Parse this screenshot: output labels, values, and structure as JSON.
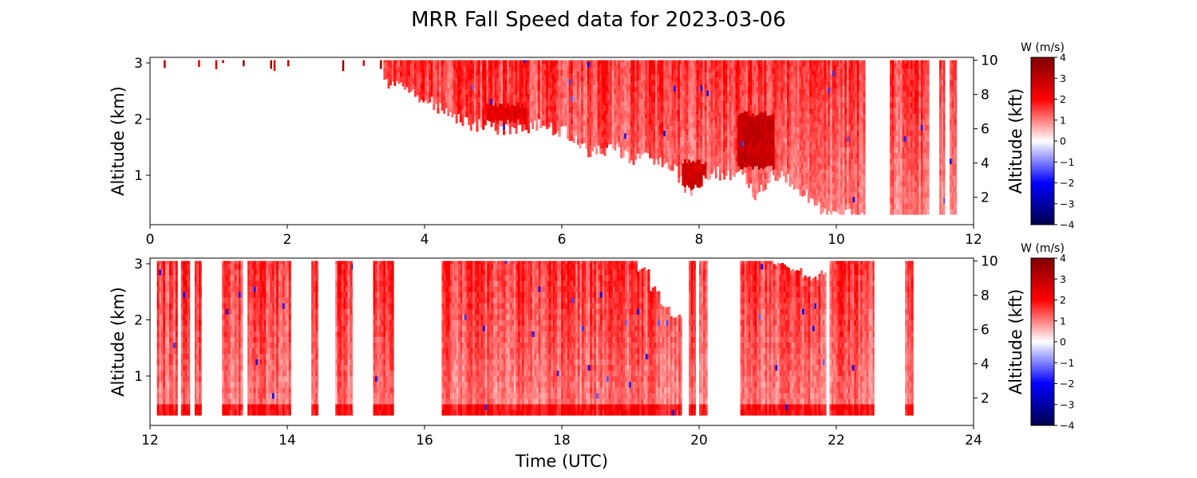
{
  "title": "MRR Fall Speed data for 2023-03-06",
  "chart_data": [
    {
      "type": "heatmap",
      "panel": "top",
      "xlabel": "",
      "ylabel": "Altitude (km)",
      "y2label": "Altitude (kft)",
      "xlim": [
        0,
        12
      ],
      "ylim": [
        0.12,
        3.1
      ],
      "y2lim": [
        0.4,
        10.17
      ],
      "xticks": [
        0,
        2,
        4,
        6,
        8,
        10,
        12
      ],
      "yticks": [
        1,
        2,
        3
      ],
      "y2ticks": [
        2,
        4,
        6,
        8,
        10
      ],
      "colorbar": {
        "label": "W (m/s)",
        "range": [
          -4,
          4
        ],
        "ticks": [
          -4,
          -3,
          -2,
          -1,
          0,
          1,
          2,
          3,
          4
        ],
        "colormap": "seismic"
      },
      "echo_top_km": 3.05,
      "echo_base_km": [
        [
          3.3,
          2.7
        ],
        [
          3.6,
          2.6
        ],
        [
          3.8,
          2.5
        ],
        [
          4.0,
          2.35
        ],
        [
          4.2,
          2.2
        ],
        [
          4.4,
          2.0
        ],
        [
          4.7,
          1.9
        ],
        [
          5.0,
          1.85
        ],
        [
          5.3,
          1.8
        ],
        [
          5.6,
          1.9
        ],
        [
          6.0,
          1.8
        ],
        [
          6.2,
          1.6
        ],
        [
          6.4,
          1.4
        ],
        [
          6.8,
          1.45
        ],
        [
          7.0,
          1.3
        ],
        [
          7.3,
          1.3
        ],
        [
          7.6,
          1.2
        ],
        [
          7.8,
          0.7
        ],
        [
          8.0,
          0.85
        ],
        [
          8.2,
          1.05
        ],
        [
          8.4,
          1.0
        ],
        [
          8.6,
          1.1
        ],
        [
          8.8,
          0.6
        ],
        [
          9.0,
          0.95
        ],
        [
          9.2,
          1.05
        ],
        [
          9.4,
          0.8
        ],
        [
          9.6,
          0.6
        ],
        [
          9.8,
          0.3
        ],
        [
          10.4,
          0.3
        ]
      ],
      "echo_segments_h": [
        [
          3.4,
          10.42
        ],
        [
          10.78,
          11.35
        ],
        [
          11.5,
          11.58
        ],
        [
          11.65,
          11.75
        ]
      ],
      "echo_segment_bases_km": [
        0.3,
        0.3,
        0.3,
        0.3
      ],
      "sparse_specks_h": [
        0.2,
        0.7,
        0.95,
        1.05,
        1.35,
        1.75,
        1.8,
        2.0,
        2.8,
        3.1,
        3.35
      ],
      "strong_cores": [
        {
          "t": [
            8.55,
            9.1
          ],
          "km": [
            1.1,
            2.05
          ],
          "w": 2.6
        },
        {
          "t": [
            7.75,
            8.1
          ],
          "km": [
            0.7,
            1.2
          ],
          "w": 2.4
        },
        {
          "t": [
            4.9,
            5.5
          ],
          "km": [
            1.9,
            2.2
          ],
          "w": 2.1
        }
      ]
    },
    {
      "type": "heatmap",
      "panel": "bottom",
      "xlabel": "Time (UTC)",
      "ylabel": "Altitude (km)",
      "y2label": "Altitude (kft)",
      "xlim": [
        12,
        24
      ],
      "ylim": [
        0.12,
        3.1
      ],
      "y2lim": [
        0.4,
        10.17
      ],
      "xticks": [
        12,
        14,
        16,
        18,
        20,
        22,
        24
      ],
      "yticks": [
        1,
        2,
        3
      ],
      "y2ticks": [
        2,
        4,
        6,
        8,
        10
      ],
      "colorbar": {
        "label": "W (m/s)",
        "range": [
          -4,
          4
        ],
        "ticks": [
          -4,
          -3,
          -2,
          -1,
          0,
          1,
          2,
          3,
          4
        ],
        "colormap": "seismic"
      },
      "echo_segments_h": [
        [
          12.1,
          12.4
        ],
        [
          12.45,
          12.58
        ],
        [
          12.65,
          12.75
        ],
        [
          13.05,
          13.35
        ],
        [
          13.42,
          14.05
        ],
        [
          14.35,
          14.45
        ],
        [
          14.7,
          14.95
        ],
        [
          15.25,
          15.55
        ],
        [
          16.25,
          19.75
        ],
        [
          19.85,
          19.95
        ],
        [
          20.0,
          20.12
        ],
        [
          20.6,
          21.85
        ],
        [
          21.9,
          22.55
        ],
        [
          23.0,
          23.12
        ]
      ],
      "echo_segment_bases_km": [
        0.3,
        0.3,
        0.3,
        0.3,
        0.3,
        0.3,
        0.3,
        0.3,
        0.3,
        0.3,
        0.3,
        0.3,
        0.3,
        0.3
      ],
      "echo_top_km": 3.05,
      "notch_top": [
        [
          19.2,
          2.85
        ],
        [
          19.4,
          2.5
        ],
        [
          19.55,
          2.2
        ],
        [
          19.7,
          2.0
        ],
        [
          21.2,
          2.95
        ],
        [
          21.4,
          2.85
        ],
        [
          21.6,
          2.7
        ],
        [
          21.75,
          2.8
        ]
      ],
      "near_surface_enhancement_km": 0.5
    }
  ]
}
